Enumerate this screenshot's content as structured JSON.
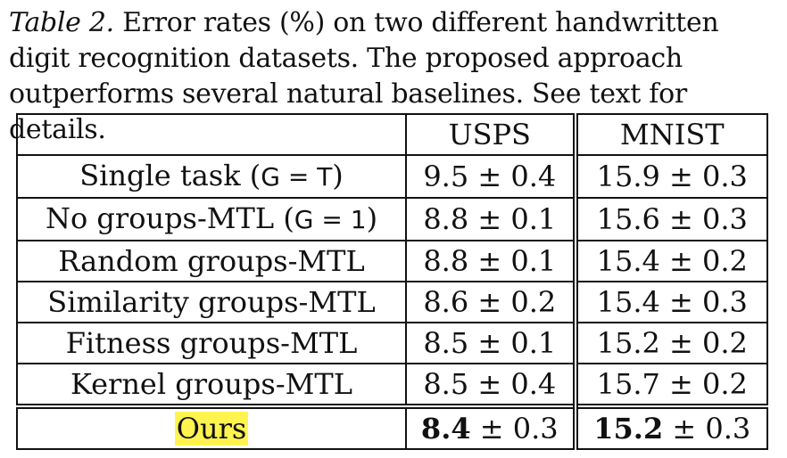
{
  "caption": {
    "label": "Table 2.",
    "text": " Error rates (%) on two different handwritten digit recognition datasets. The proposed approach outperforms several natural baselines. See text for details."
  },
  "table": {
    "headers": [
      "",
      "USPS",
      "MNIST"
    ],
    "rows": [
      {
        "method_pre": "Single task (",
        "method_sym": "G = T",
        "method_post": ")",
        "usps_main": "9.5",
        "usps_pm": " ± 0.4",
        "mnist_main": "15.9",
        "mnist_pm": " ± 0.3"
      },
      {
        "method_pre": "No groups-MTL (",
        "method_sym": "G = 1",
        "method_post": ")",
        "usps_main": "8.8",
        "usps_pm": " ± 0.1",
        "mnist_main": "15.6",
        "mnist_pm": " ± 0.3"
      },
      {
        "method": "Random groups-MTL",
        "usps_main": "8.8",
        "usps_pm": " ± 0.1",
        "mnist_main": "15.4",
        "mnist_pm": " ± 0.2"
      },
      {
        "method": "Similarity groups-MTL",
        "usps_main": "8.6",
        "usps_pm": " ± 0.2",
        "mnist_main": "15.4",
        "mnist_pm": " ± 0.3"
      },
      {
        "method": "Fitness groups-MTL",
        "usps_main": "8.5",
        "usps_pm": " ± 0.1",
        "mnist_main": "15.2",
        "mnist_pm": " ± 0.2"
      },
      {
        "method": "Kernel groups-MTL",
        "usps_main": "8.5",
        "usps_pm": " ± 0.4",
        "mnist_main": "15.7",
        "mnist_pm": " ± 0.2"
      }
    ],
    "ours": {
      "method": "Ours",
      "usps_main": "8.4",
      "usps_pm": " ± 0.3",
      "mnist_main": "15.2",
      "mnist_pm": " ± 0.3"
    }
  },
  "colors": {
    "highlight": "#fff44f",
    "ink": "#111111"
  }
}
